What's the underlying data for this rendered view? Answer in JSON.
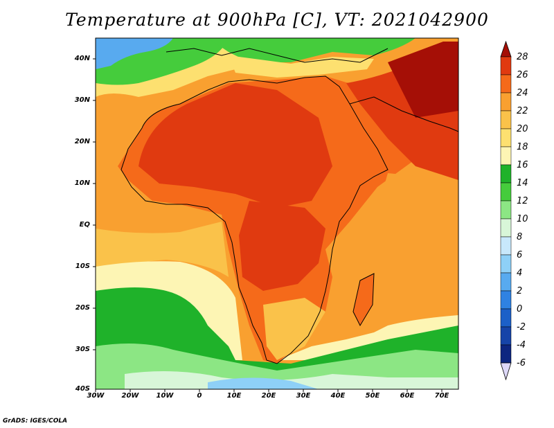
{
  "title": "Temperature at 900hPa [C], VT: 2021042900",
  "credit": "GrADS: IGES/COLA",
  "lat_labels": [
    "40N",
    "30N",
    "20N",
    "10N",
    "EQ",
    "10S",
    "20S",
    "30S",
    "40S"
  ],
  "lon_labels": [
    "30W",
    "20W",
    "10W",
    "0",
    "10E",
    "20E",
    "30E",
    "40E",
    "50E",
    "60E",
    "70E"
  ],
  "colorbar": {
    "labels": [
      "28",
      "26",
      "24",
      "22",
      "20",
      "18",
      "16",
      "14",
      "12",
      "10",
      "8",
      "6",
      "4",
      "2",
      "0",
      "-2",
      "-4",
      "-6"
    ],
    "colors": [
      "#a50f06",
      "#e03a10",
      "#f56a1a",
      "#f9a030",
      "#fac24a",
      "#fde070",
      "#fdf5b4",
      "#1fb22a",
      "#45cc3c",
      "#8ce684",
      "#d8f6d8",
      "#c8e8fb",
      "#8ed0f7",
      "#58aaef",
      "#2f82e2",
      "#1c60c8",
      "#1644a8",
      "#0d2680",
      "#001a60"
    ]
  }
}
